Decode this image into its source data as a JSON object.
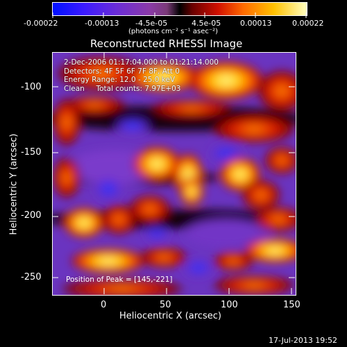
{
  "colorbar": {
    "ticks": [
      "-0.00022",
      "-0.00013",
      "-4.5e-05",
      "4.5e-05",
      "0.00013",
      "0.00022"
    ],
    "units": "(photons cm⁻² s⁻¹ asec⁻²)"
  },
  "plot": {
    "title": "Reconstructed RHESSI Image",
    "info_lines": [
      "2-Dec-2006 01:17:04.000 to 01:21:14.000",
      "Detectors: 4F 5F 6F 7F 8F, Att 0",
      "Energy Range: 12.0 - 25.0 keV",
      "Clean     Total counts: 7.97E+03"
    ],
    "peak_text": "Position of Peak = [145,-221]",
    "xlabel": "Heliocentric X (arcsec)",
    "ylabel": "Heliocentric Y (arcsec)",
    "x_ticks": [
      "0",
      "50",
      "100",
      "150"
    ],
    "y_ticks": [
      "-100",
      "-150",
      "-200",
      "-250"
    ]
  },
  "footer": {
    "timestamp": "17-Jul-2013 19:52"
  }
}
